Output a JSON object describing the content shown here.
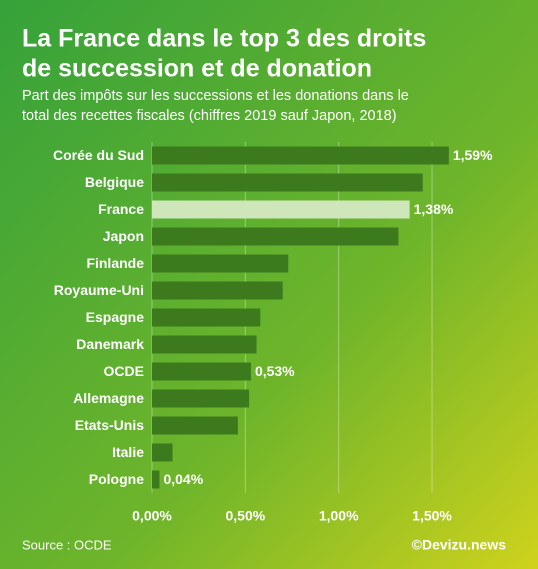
{
  "chart_data": {
    "type": "hbar",
    "title": [
      "La France dans le top 3 des droits",
      "de succession et de donation"
    ],
    "subtitle": [
      "Part des impôts sur les successions et les donations dans le",
      "total des recettes fiscales (chiffres 2019 sauf Japon, 2018)"
    ],
    "categories": [
      "Corée du Sud",
      "Belgique",
      "France",
      "Japon",
      "Finlande",
      "Royaume-Uni",
      "Espagne",
      "Danemark",
      "OCDE",
      "Allemagne",
      "Etats-Unis",
      "Italie",
      "Pologne"
    ],
    "values": [
      1.59,
      1.45,
      1.38,
      1.32,
      0.73,
      0.7,
      0.58,
      0.56,
      0.53,
      0.52,
      0.46,
      0.11,
      0.04
    ],
    "value_labels": [
      "1,59%",
      null,
      "1,38%",
      null,
      null,
      null,
      null,
      null,
      "0,53%",
      null,
      null,
      null,
      "0,04%"
    ],
    "colors": [
      "#3c7a1d",
      "#3c7a1d",
      "#cfe6bb",
      "#3c7a1d",
      "#3c7a1d",
      "#3c7a1d",
      "#3c7a1d",
      "#3c7a1d",
      "#3c7a1d",
      "#3c7a1d",
      "#3c7a1d",
      "#3c7a1d",
      "#3c7a1d"
    ],
    "xlim": [
      0,
      1.6
    ],
    "xticks": [
      {
        "value": 0,
        "label": "0,00%"
      },
      {
        "value": 0.5,
        "label": "0,50%"
      },
      {
        "value": 1,
        "label": "1,00%"
      },
      {
        "value": 1.5,
        "label": "1,50%"
      }
    ],
    "grid": true,
    "source": "Source : OCDE",
    "credit": "©Devizu.news"
  }
}
